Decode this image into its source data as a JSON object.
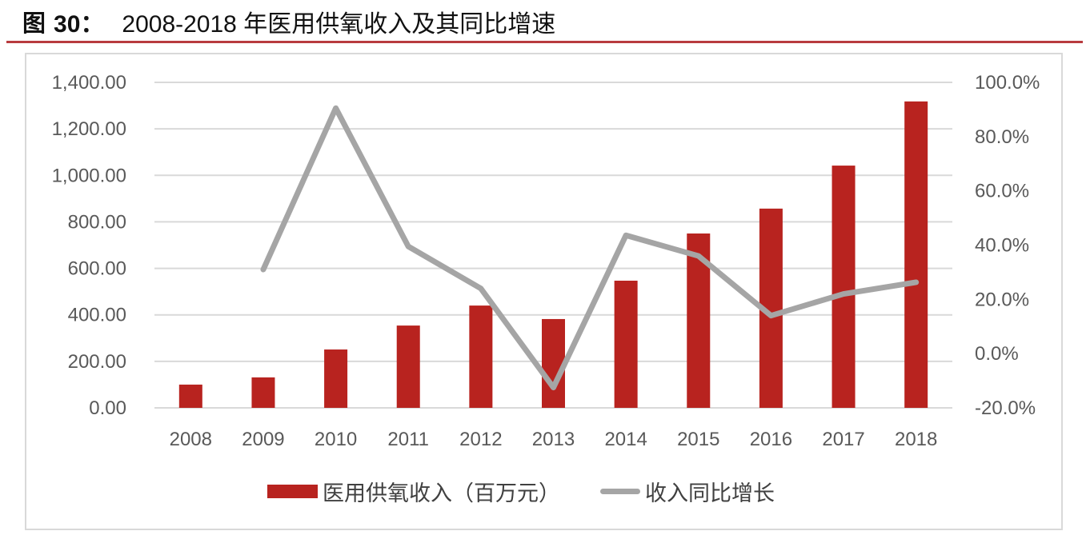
{
  "figure": {
    "label": "图",
    "number": "30：",
    "title": "2008-2018 年医用供氧收入及其同比增速"
  },
  "colors": {
    "bar": "#b8231f",
    "line": "#a5a5a5",
    "rule": "#b83b3e",
    "grid": "#d9d9d9",
    "tick_text": "#595959"
  },
  "legend": {
    "bar_label": "医用供氧收入（百万元）",
    "line_label": "收入同比增长"
  },
  "chart_data": {
    "type": "bar+line",
    "title": "2008-2018 年医用供氧收入及其同比增速",
    "categories": [
      "2008",
      "2009",
      "2010",
      "2011",
      "2012",
      "2013",
      "2014",
      "2015",
      "2016",
      "2017",
      "2018"
    ],
    "series": [
      {
        "name": "医用供氧收入（百万元）",
        "type": "bar",
        "axis": "left",
        "values": [
          100,
          131,
          251,
          354,
          440,
          382,
          547,
          750,
          857,
          1042,
          1318
        ]
      },
      {
        "name": "收入同比增长",
        "type": "line",
        "axis": "right",
        "values": [
          null,
          31.0,
          90.5,
          39.5,
          24.0,
          -12.5,
          43.6,
          36.0,
          14.0,
          22.0,
          26.3
        ]
      }
    ],
    "left_axis": {
      "ylim": [
        0,
        1400
      ],
      "ticks": [
        "0.00",
        "200.00",
        "400.00",
        "600.00",
        "800.00",
        "1,000.00",
        "1,200.00",
        "1,400.00"
      ]
    },
    "right_axis": {
      "ylim": [
        -20,
        100
      ],
      "ticks": [
        "-20.0%",
        "0.0%",
        "20.0%",
        "40.0%",
        "60.0%",
        "80.0%",
        "100.0%"
      ]
    },
    "xlabel": "",
    "ylabel": "",
    "grid": true,
    "legend_position": "bottom"
  }
}
